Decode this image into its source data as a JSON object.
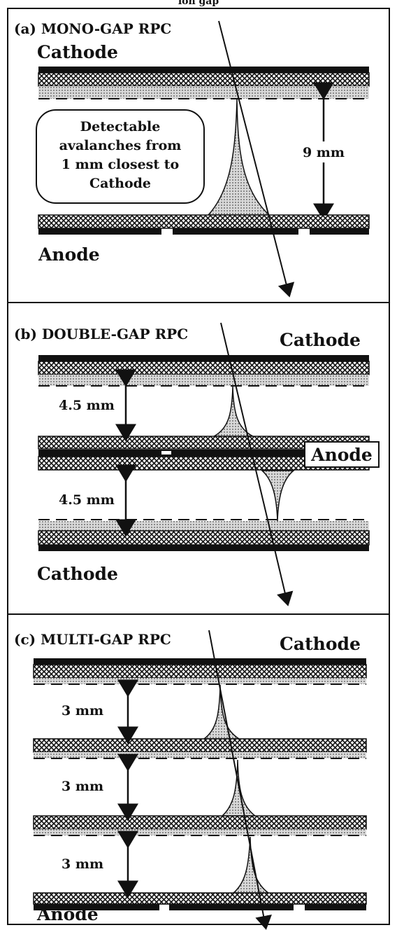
{
  "top_caption": "ion gap",
  "panels": [
    {
      "id": "a",
      "title": "(a) MONO-GAP RPC",
      "electrode_top": "Cathode",
      "electrode_bottom": "Anode",
      "gap_label": "9 mm",
      "callout_lines": [
        "Detectable",
        "avalanches from",
        "1 mm closest to",
        "Cathode"
      ]
    },
    {
      "id": "b",
      "title": "(b) DOUBLE-GAP RPC",
      "electrode_top": "Cathode",
      "electrode_middle": "Anode",
      "electrode_bottom": "Cathode",
      "gap_labels": [
        "4.5 mm",
        "4.5 mm"
      ]
    },
    {
      "id": "c",
      "title": "(c) MULTI-GAP RPC",
      "electrode_top": "Cathode",
      "electrode_bottom": "Anode",
      "gap_labels": [
        "3 mm",
        "3 mm",
        "3 mm"
      ]
    }
  ],
  "colors": {
    "ink": "#111111",
    "resistive_plate": "#111111",
    "coating": "#bdbdbd",
    "avalanche": "#9a9a9a"
  },
  "icons": [
    "particle-track-arrow",
    "avalanche-shape",
    "gap-dimension-arrow"
  ]
}
